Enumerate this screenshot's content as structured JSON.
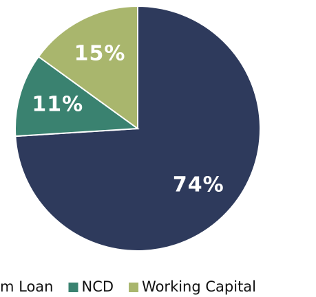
{
  "chart_data": {
    "type": "pie",
    "categories": [
      "m Loan",
      "NCD",
      "Working Capital"
    ],
    "values": [
      74,
      11,
      15
    ],
    "value_labels": [
      "74%",
      "11%",
      "15%"
    ],
    "colors": [
      "#2e3a5c",
      "#3a8270",
      "#a9b66d"
    ]
  }
}
